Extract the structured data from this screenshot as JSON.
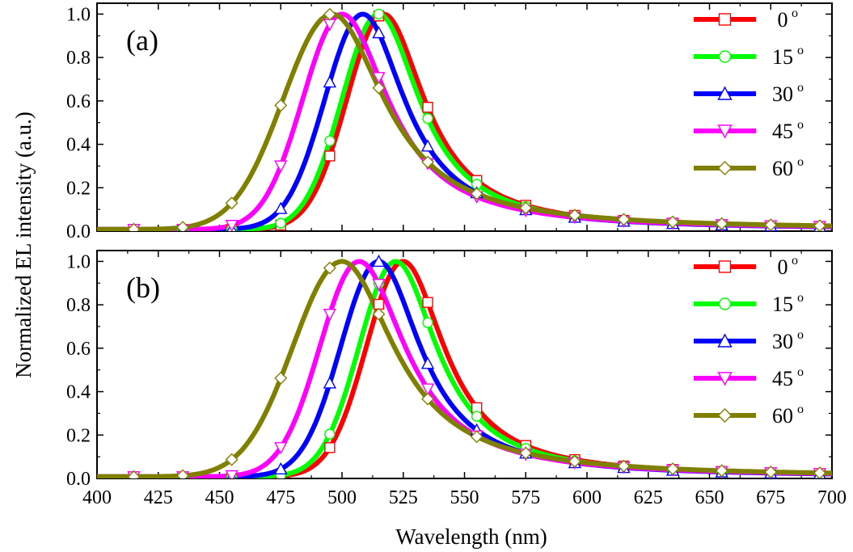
{
  "chart_data": [
    {
      "type": "line",
      "panel_label": "(a)",
      "xlim": [
        400,
        700
      ],
      "ylim": [
        0,
        1.05
      ],
      "xticks": [
        "400",
        "425",
        "450",
        "475",
        "500",
        "525",
        "550",
        "575",
        "600",
        "625",
        "650",
        "675",
        "700"
      ],
      "yticks": [
        "0.0",
        "0.2",
        "0.4",
        "0.6",
        "0.8",
        "1.0"
      ],
      "legend_position": "right",
      "series": [
        {
          "name": "0",
          "degree_symbol": "o",
          "color": "#ff0000",
          "marker": "square",
          "peak": 517,
          "sl": 15,
          "sr": 23.5,
          "floor": 0.008
        },
        {
          "name": "15",
          "degree_symbol": "o",
          "color": "#00ff00",
          "marker": "circle",
          "peak": 515,
          "sl": 15,
          "sr": 23.5,
          "floor": 0.008
        },
        {
          "name": "30",
          "degree_symbol": "o",
          "color": "#0000ff",
          "marker": "triangle-up",
          "peak": 508.5,
          "sl": 15.5,
          "sr": 24,
          "floor": 0.008
        },
        {
          "name": "45",
          "degree_symbol": "o",
          "color": "#ff00ff",
          "marker": "triangle-down",
          "peak": 500,
          "sl": 16,
          "sr": 26.5,
          "floor": 0.008
        },
        {
          "name": "60",
          "degree_symbol": "o",
          "color": "#808000",
          "marker": "diamond",
          "peak": 496,
          "sl": 20,
          "sr": 30,
          "floor": 0.008
        }
      ]
    },
    {
      "type": "line",
      "panel_label": "(b)",
      "xlim": [
        400,
        700
      ],
      "ylim": [
        0,
        1.05
      ],
      "xticks": [
        "400",
        "425",
        "450",
        "475",
        "500",
        "525",
        "550",
        "575",
        "600",
        "625",
        "650",
        "675",
        "700"
      ],
      "yticks": [
        "0.0",
        "0.2",
        "0.4",
        "0.6",
        "0.8",
        "1.0"
      ],
      "legend_position": "right",
      "series": [
        {
          "name": "0",
          "degree_symbol": "o",
          "color": "#ff0000",
          "marker": "square",
          "peak": 525,
          "sl": 15,
          "sr": 23.5,
          "floor": 0.008
        },
        {
          "name": "15",
          "degree_symbol": "o",
          "color": "#00ff00",
          "marker": "circle",
          "peak": 522,
          "sl": 15,
          "sr": 23.5,
          "floor": 0.008
        },
        {
          "name": "30",
          "degree_symbol": "o",
          "color": "#0000ff",
          "marker": "triangle-up",
          "peak": 515,
          "sl": 15.5,
          "sr": 24,
          "floor": 0.008
        },
        {
          "name": "45",
          "degree_symbol": "o",
          "color": "#ff00ff",
          "marker": "triangle-down",
          "peak": 507,
          "sl": 16,
          "sr": 26.5,
          "floor": 0.008
        },
        {
          "name": "60",
          "degree_symbol": "o",
          "color": "#808000",
          "marker": "diamond",
          "peak": 500,
          "sl": 20,
          "sr": 30,
          "floor": 0.008
        }
      ]
    }
  ],
  "labels": {
    "xlabel": "Wavelength (nm)",
    "ylabel": "Normalized EL intensity (a.u.)"
  }
}
